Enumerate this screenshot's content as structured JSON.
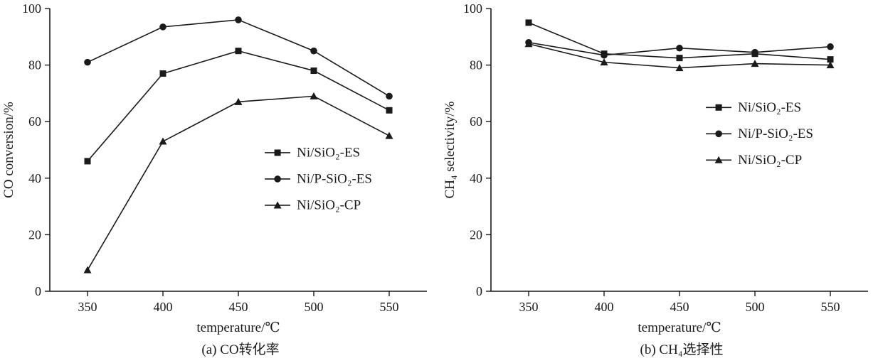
{
  "figure": {
    "background": "#ffffff",
    "line_color": "#1a1a1a"
  },
  "chart_data": [
    {
      "type": "line",
      "title": "",
      "xlabel": "temperature/℃",
      "ylabel": "CO conversion/%",
      "caption": "(a) CO转化率",
      "x": [
        350,
        400,
        450,
        500,
        550
      ],
      "xticks": [
        350,
        400,
        450,
        500,
        550
      ],
      "yticks": [
        0,
        20,
        40,
        60,
        80,
        100
      ],
      "xlim": [
        325,
        575
      ],
      "ylim": [
        0,
        100
      ],
      "grid": false,
      "legend": {
        "fx": 0.57,
        "fy": 0.51
      },
      "series": [
        {
          "name": "Ni/SiO₂-ES",
          "marker": "square",
          "values": [
            46,
            77,
            85,
            78,
            64
          ]
        },
        {
          "name": "Ni/P-SiO₂-ES",
          "marker": "circle",
          "values": [
            81,
            93.5,
            96,
            85,
            69
          ]
        },
        {
          "name": "Ni/SiO₂-CP",
          "marker": "triangle",
          "values": [
            7.5,
            53,
            67,
            69,
            55
          ]
        }
      ]
    },
    {
      "type": "line",
      "title": "",
      "xlabel": "temperature/℃",
      "ylabel": "CH₄ selectivity/%",
      "caption": "(b) CH₄选择性",
      "x": [
        350,
        400,
        450,
        500,
        550
      ],
      "xticks": [
        350,
        400,
        450,
        500,
        550
      ],
      "yticks": [
        0,
        20,
        40,
        60,
        80,
        100
      ],
      "xlim": [
        325,
        575
      ],
      "ylim": [
        0,
        100
      ],
      "grid": false,
      "legend": {
        "fx": 0.57,
        "fy": 0.35
      },
      "series": [
        {
          "name": "Ni/SiO₂-ES",
          "marker": "square",
          "values": [
            95,
            84,
            82.5,
            84,
            82
          ]
        },
        {
          "name": "Ni/P-SiO₂-ES",
          "marker": "circle",
          "values": [
            88,
            83.5,
            86,
            84.5,
            86.5
          ]
        },
        {
          "name": "Ni/SiO₂-CP",
          "marker": "triangle",
          "values": [
            87.5,
            81,
            79,
            80.5,
            80
          ]
        }
      ]
    }
  ]
}
